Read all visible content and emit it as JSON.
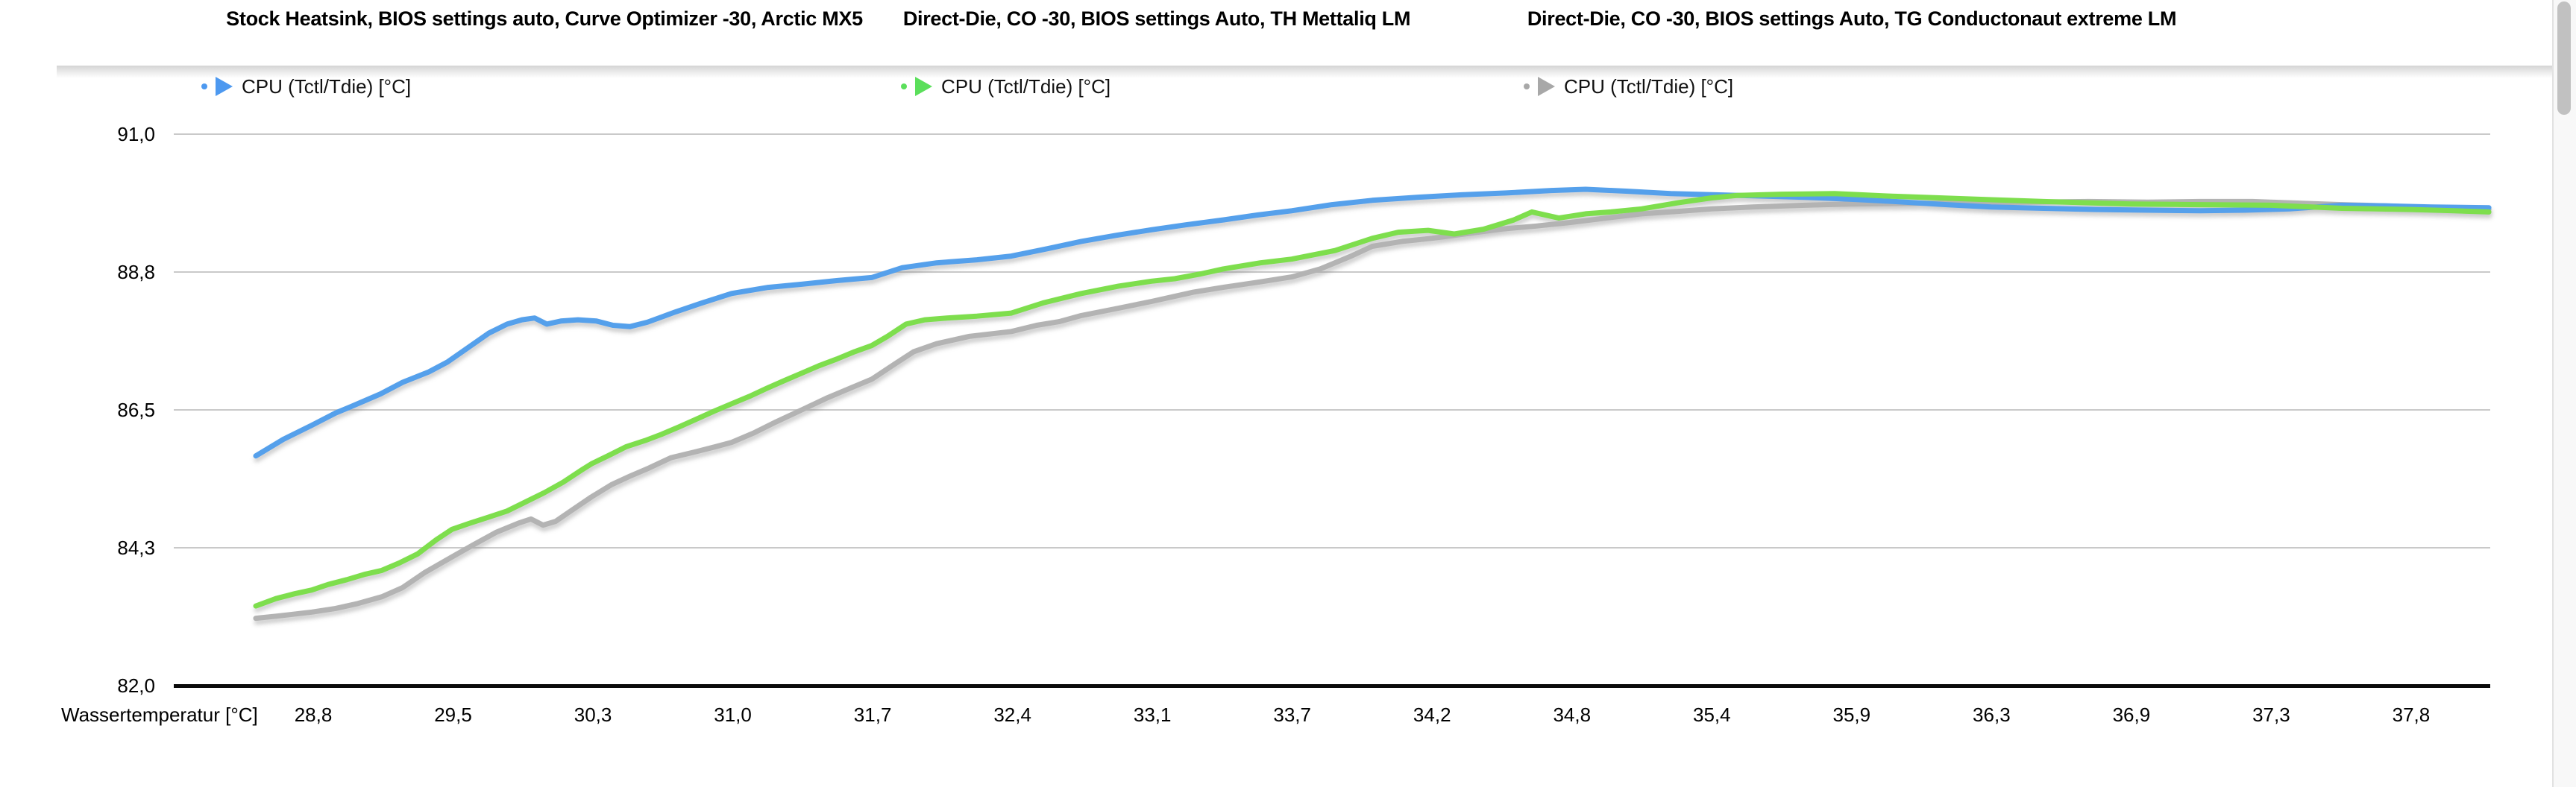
{
  "header": {
    "items": [
      {
        "title": "Stock Heatsink, BIOS settings auto, Curve Optimizer -30, Arctic MX5",
        "legend_label": "CPU (Tctl/Tdie) [°C]",
        "series_color": "#55a0eb",
        "marker_color": "#4d99f0"
      },
      {
        "title": "Direct-Die, CO -30, BIOS settings Auto, TH Mettaliq LM",
        "legend_label": "CPU (Tctl/Tdie) [°C]",
        "series_color": "#7ede4e",
        "marker_color": "#5bdf5b"
      },
      {
        "title": "Direct-Die, CO -30, BIOS settings Auto, TG Conductonaut extreme LM",
        "legend_label": "CPU (Tctl/Tdie) [°C]",
        "series_color": "#b3b3b3",
        "marker_color": "#a8a8a8"
      }
    ]
  },
  "chart_data": {
    "type": "line",
    "xlabel": "Wassertemperatur [°C]",
    "ylabel": "CPU (Tctl/Tdie) [°C]",
    "x_axis_type": "category",
    "x_ticks": [
      "28,8",
      "29,5",
      "30,3",
      "31,0",
      "31,7",
      "32,4",
      "33,1",
      "33,7",
      "34,2",
      "34,8",
      "35,4",
      "35,9",
      "36,3",
      "36,9",
      "37,3",
      "37,8"
    ],
    "y_ticks": [
      "91,0",
      "88,8",
      "86,5",
      "84,3",
      "82,0"
    ],
    "ylim": [
      82.0,
      91.0
    ],
    "grid": "horizontal",
    "legend_position": "top",
    "series": [
      {
        "name": "Stock Heatsink, BIOS settings auto, Curve Optimizer -30, Arctic MX5 — CPU (Tctl/Tdie) [°C]",
        "color": "#55a0eb",
        "points": [
          [
            0.0354,
            85.75
          ],
          [
            0.0473,
            86.02
          ],
          [
            0.0596,
            86.25
          ],
          [
            0.0699,
            86.45
          ],
          [
            0.0763,
            86.55
          ],
          [
            0.0892,
            86.76
          ],
          [
            0.0988,
            86.95
          ],
          [
            0.1101,
            87.12
          ],
          [
            0.1181,
            87.28
          ],
          [
            0.1272,
            87.52
          ],
          [
            0.1359,
            87.75
          ],
          [
            0.1439,
            87.9
          ],
          [
            0.1503,
            87.97
          ],
          [
            0.1558,
            88.0
          ],
          [
            0.161,
            87.9
          ],
          [
            0.1671,
            87.95
          ],
          [
            0.1745,
            87.97
          ],
          [
            0.1825,
            87.95
          ],
          [
            0.1896,
            87.88
          ],
          [
            0.197,
            87.86
          ],
          [
            0.2044,
            87.93
          ],
          [
            0.2167,
            88.1
          ],
          [
            0.2276,
            88.24
          ],
          [
            0.2408,
            88.4
          ],
          [
            0.2566,
            88.5
          ],
          [
            0.2711,
            88.55
          ],
          [
            0.2862,
            88.61
          ],
          [
            0.3013,
            88.66
          ],
          [
            0.3145,
            88.82
          ],
          [
            0.3293,
            88.9
          ],
          [
            0.3467,
            88.95
          ],
          [
            0.3616,
            89.01
          ],
          [
            0.377,
            89.13
          ],
          [
            0.3918,
            89.25
          ],
          [
            0.407,
            89.35
          ],
          [
            0.4221,
            89.44
          ],
          [
            0.4369,
            89.52
          ],
          [
            0.453,
            89.6
          ],
          [
            0.4678,
            89.68
          ],
          [
            0.4826,
            89.75
          ],
          [
            0.5,
            89.85
          ],
          [
            0.5174,
            89.92
          ],
          [
            0.5367,
            89.97
          ],
          [
            0.556,
            90.01
          ],
          [
            0.5753,
            90.04
          ],
          [
            0.5947,
            90.08
          ],
          [
            0.6095,
            90.1
          ],
          [
            0.6269,
            90.07
          ],
          [
            0.6462,
            90.03
          ],
          [
            0.6655,
            90.01
          ],
          [
            0.6848,
            89.99
          ],
          [
            0.7042,
            89.97
          ],
          [
            0.7235,
            89.94
          ],
          [
            0.7428,
            89.9
          ],
          [
            0.7653,
            89.85
          ],
          [
            0.7846,
            89.81
          ],
          [
            0.8072,
            89.79
          ],
          [
            0.8297,
            89.77
          ],
          [
            0.8522,
            89.76
          ],
          [
            0.8748,
            89.75
          ],
          [
            0.8941,
            89.76
          ],
          [
            0.9134,
            89.78
          ],
          [
            0.9359,
            89.84
          ],
          [
            0.9552,
            89.83
          ],
          [
            0.9746,
            89.81
          ],
          [
            0.9994,
            89.8
          ]
        ]
      },
      {
        "name": "Direct-Die, CO -30, BIOS settings Auto, TH Mettaliq LM — CPU (Tctl/Tdie) [°C]",
        "color": "#7ede4e",
        "points": [
          [
            0.0354,
            83.3
          ],
          [
            0.0441,
            83.42
          ],
          [
            0.0522,
            83.5
          ],
          [
            0.0596,
            83.56
          ],
          [
            0.0666,
            83.65
          ],
          [
            0.0747,
            83.73
          ],
          [
            0.0827,
            83.82
          ],
          [
            0.0898,
            83.88
          ],
          [
            0.0972,
            84.0
          ],
          [
            0.1053,
            84.15
          ],
          [
            0.1133,
            84.38
          ],
          [
            0.1201,
            84.55
          ],
          [
            0.1278,
            84.65
          ],
          [
            0.1359,
            84.75
          ],
          [
            0.1439,
            84.85
          ],
          [
            0.152,
            85.0
          ],
          [
            0.16,
            85.15
          ],
          [
            0.1681,
            85.32
          ],
          [
            0.1761,
            85.52
          ],
          [
            0.1803,
            85.62
          ],
          [
            0.1874,
            85.75
          ],
          [
            0.1954,
            85.9
          ],
          [
            0.2035,
            86.0
          ],
          [
            0.2105,
            86.1
          ],
          [
            0.218,
            86.22
          ],
          [
            0.2257,
            86.35
          ],
          [
            0.2334,
            86.48
          ],
          [
            0.2408,
            86.6
          ],
          [
            0.2485,
            86.72
          ],
          [
            0.2559,
            86.85
          ],
          [
            0.2637,
            86.98
          ],
          [
            0.2711,
            87.1
          ],
          [
            0.2785,
            87.22
          ],
          [
            0.2862,
            87.33
          ],
          [
            0.2939,
            87.45
          ],
          [
            0.3013,
            87.55
          ],
          [
            0.3081,
            87.7
          ],
          [
            0.3161,
            87.9
          ],
          [
            0.3242,
            87.97
          ],
          [
            0.3338,
            88.0
          ],
          [
            0.3467,
            88.03
          ],
          [
            0.3616,
            88.08
          ],
          [
            0.3757,
            88.25
          ],
          [
            0.3918,
            88.4
          ],
          [
            0.4079,
            88.52
          ],
          [
            0.4221,
            88.6
          ],
          [
            0.4321,
            88.64
          ],
          [
            0.4434,
            88.72
          ],
          [
            0.453,
            88.8
          ],
          [
            0.4691,
            88.9
          ],
          [
            0.4826,
            88.96
          ],
          [
            0.5013,
            89.1
          ],
          [
            0.5174,
            89.3
          ],
          [
            0.5286,
            89.4
          ],
          [
            0.5415,
            89.43
          ],
          [
            0.5528,
            89.37
          ],
          [
            0.5656,
            89.45
          ],
          [
            0.5785,
            89.6
          ],
          [
            0.5863,
            89.73
          ],
          [
            0.5979,
            89.63
          ],
          [
            0.6095,
            89.7
          ],
          [
            0.6204,
            89.73
          ],
          [
            0.6336,
            89.78
          ],
          [
            0.6494,
            89.88
          ],
          [
            0.6639,
            89.96
          ],
          [
            0.6751,
            90.0
          ],
          [
            0.6941,
            90.02
          ],
          [
            0.717,
            90.03
          ],
          [
            0.7395,
            89.99
          ],
          [
            0.7621,
            89.96
          ],
          [
            0.7846,
            89.93
          ],
          [
            0.8072,
            89.9
          ],
          [
            0.8265,
            89.88
          ],
          [
            0.8451,
            89.86
          ],
          [
            0.8748,
            89.85
          ],
          [
            0.9053,
            89.84
          ],
          [
            0.9359,
            89.79
          ],
          [
            0.9659,
            89.77
          ],
          [
            0.9842,
            89.75
          ],
          [
            0.9994,
            89.73
          ]
        ]
      },
      {
        "name": "Direct-Die, CO -30, BIOS settings Auto, TG Conductonaut extreme LM — CPU (Tctl/Tdie) [°C]",
        "color": "#b3b3b3",
        "points": [
          [
            0.0354,
            83.1
          ],
          [
            0.0457,
            83.14
          ],
          [
            0.0596,
            83.2
          ],
          [
            0.0699,
            83.26
          ],
          [
            0.0795,
            83.34
          ],
          [
            0.0898,
            83.45
          ],
          [
            0.0988,
            83.6
          ],
          [
            0.1085,
            83.85
          ],
          [
            0.1201,
            84.1
          ],
          [
            0.1294,
            84.3
          ],
          [
            0.1391,
            84.5
          ],
          [
            0.1487,
            84.65
          ],
          [
            0.1542,
            84.72
          ],
          [
            0.1594,
            84.62
          ],
          [
            0.1648,
            84.68
          ],
          [
            0.1713,
            84.85
          ],
          [
            0.1803,
            85.08
          ],
          [
            0.189,
            85.28
          ],
          [
            0.197,
            85.42
          ],
          [
            0.2051,
            85.55
          ],
          [
            0.2147,
            85.72
          ],
          [
            0.2257,
            85.82
          ],
          [
            0.234,
            85.9
          ],
          [
            0.2408,
            85.97
          ],
          [
            0.2502,
            86.12
          ],
          [
            0.2598,
            86.3
          ],
          [
            0.2711,
            86.5
          ],
          [
            0.2823,
            86.7
          ],
          [
            0.2936,
            86.88
          ],
          [
            0.3013,
            87.0
          ],
          [
            0.3113,
            87.25
          ],
          [
            0.3194,
            87.45
          ],
          [
            0.3293,
            87.58
          ],
          [
            0.3435,
            87.7
          ],
          [
            0.3616,
            87.78
          ],
          [
            0.3725,
            87.88
          ],
          [
            0.3822,
            87.94
          ],
          [
            0.3918,
            88.04
          ],
          [
            0.4079,
            88.16
          ],
          [
            0.4221,
            88.27
          ],
          [
            0.4401,
            88.42
          ],
          [
            0.453,
            88.5
          ],
          [
            0.4691,
            88.59
          ],
          [
            0.4826,
            88.67
          ],
          [
            0.4949,
            88.8
          ],
          [
            0.5077,
            89.0
          ],
          [
            0.5174,
            89.17
          ],
          [
            0.5303,
            89.25
          ],
          [
            0.5431,
            89.3
          ],
          [
            0.5592,
            89.38
          ],
          [
            0.5731,
            89.45
          ],
          [
            0.5882,
            89.5
          ],
          [
            0.6033,
            89.56
          ],
          [
            0.6204,
            89.64
          ],
          [
            0.6336,
            89.7
          ],
          [
            0.6494,
            89.74
          ],
          [
            0.6639,
            89.78
          ],
          [
            0.6816,
            89.81
          ],
          [
            0.7042,
            89.84
          ],
          [
            0.7235,
            89.86
          ],
          [
            0.7492,
            89.87
          ],
          [
            0.775,
            89.88
          ],
          [
            0.8007,
            89.89
          ],
          [
            0.8265,
            89.9
          ],
          [
            0.8522,
            89.89
          ],
          [
            0.8748,
            89.9
          ],
          [
            0.8973,
            89.9
          ],
          [
            0.9198,
            89.87
          ],
          [
            0.9359,
            89.85
          ],
          [
            0.9552,
            89.83
          ],
          [
            0.9746,
            89.8
          ],
          [
            0.9994,
            89.77
          ]
        ]
      }
    ]
  },
  "scrollbar": {
    "orientation": "vertical",
    "thumb_color": "#c1c1c1",
    "track_color": "#f8f8f8"
  }
}
